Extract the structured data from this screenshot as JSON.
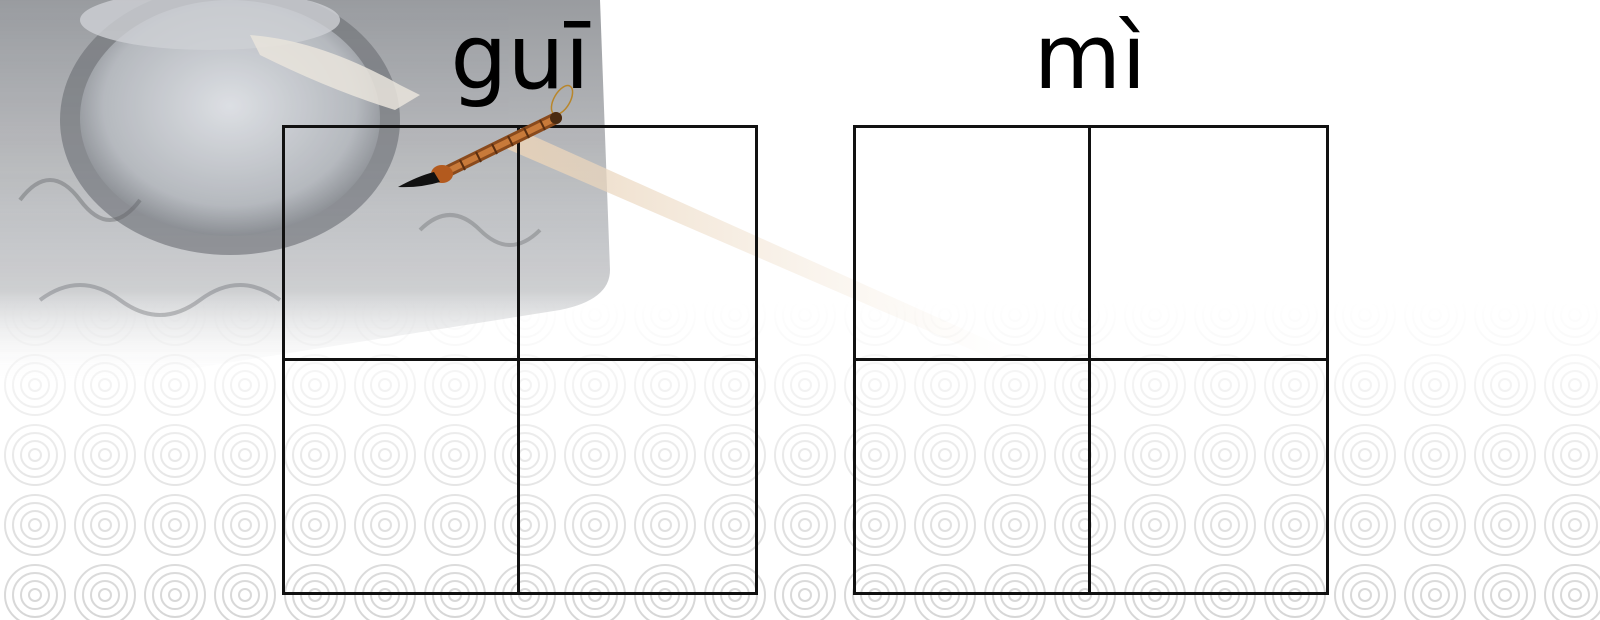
{
  "pinyin": [
    {
      "text": "guī"
    },
    {
      "text": "mì"
    }
  ],
  "grids": [
    {
      "character": ""
    },
    {
      "character": ""
    }
  ],
  "decor": {
    "background_icons": [
      "inkstone-icon",
      "calligraphy-brush-icon",
      "swirl-cloud-pattern"
    ],
    "brush_icon": "calligraphy-brush-icon"
  }
}
